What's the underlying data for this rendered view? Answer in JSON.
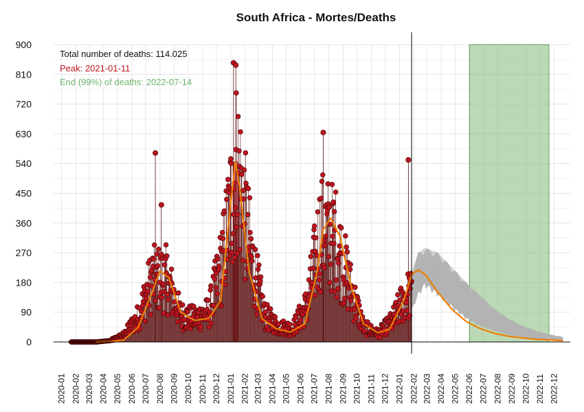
{
  "chart_data": {
    "type": "line",
    "title": "South Africa - Mortes/Deaths",
    "xlabel": "",
    "ylabel": "",
    "ylim": [
      0,
      900
    ],
    "yticks": [
      "0",
      "90",
      "180",
      "270",
      "360",
      "450",
      "540",
      "630",
      "720",
      "810",
      "900"
    ],
    "xticks": [
      "2020-01",
      "2020-02",
      "2020-03",
      "2020-04",
      "2020-05",
      "2020-06",
      "2020-07",
      "2020-08",
      "2020-09",
      "2020-10",
      "2020-11",
      "2020-12",
      "2021-01",
      "2021-02",
      "2021-03",
      "2021-04",
      "2021-05",
      "2021-06",
      "2021-07",
      "2021-08",
      "2021-09",
      "2021-10",
      "2021-11",
      "2021-12",
      "2022-01",
      "2022-02",
      "2022-03",
      "2022-04",
      "2022-05",
      "2022-06",
      "2022-07",
      "2022-08",
      "2022-09",
      "2022-10",
      "2022-11",
      "2022-12"
    ],
    "grid": true,
    "annotations": {
      "total": "Total number of deaths: 114.025",
      "peak": "Peak: 2021-01-11",
      "end": "End (99%) of deaths: 2022-07-14"
    },
    "peak_date": "2021-01-11",
    "current_date": "2022-01-27",
    "end_band": {
      "from": "2022-06-01",
      "to": "2022-11-20"
    },
    "observed_monthly_approx": {
      "x": [
        "2020-03",
        "2020-04",
        "2020-05",
        "2020-06",
        "2020-07",
        "2020-08",
        "2020-09",
        "2020-10",
        "2020-11",
        "2020-12",
        "2021-01",
        "2021-02",
        "2021-03",
        "2021-04",
        "2021-05",
        "2021-06",
        "2021-07",
        "2021-08",
        "2021-09",
        "2021-10",
        "2021-11",
        "2021-12",
        "2022-01"
      ],
      "y": [
        0,
        4,
        20,
        75,
        190,
        190,
        80,
        70,
        90,
        250,
        540,
        250,
        80,
        45,
        40,
        110,
        340,
        310,
        170,
        45,
        25,
        60,
        140
      ]
    },
    "highlight_spikes": [
      {
        "date": "2020-07-22",
        "value": 572
      },
      {
        "date": "2020-08-04",
        "value": 415
      },
      {
        "date": "2021-01-07",
        "value": 845
      },
      {
        "date": "2021-01-12",
        "value": 838
      },
      {
        "date": "2021-07-20",
        "value": 634
      },
      {
        "date": "2022-01-20",
        "value": 551
      }
    ],
    "smoothed_fit": {
      "x": [
        "2020-03-15",
        "2020-04-15",
        "2020-05-15",
        "2020-06-15",
        "2020-07-15",
        "2020-08-01",
        "2020-08-20",
        "2020-09-15",
        "2020-10-15",
        "2020-11-15",
        "2020-12-10",
        "2021-01-01",
        "2021-01-11",
        "2021-01-20",
        "2021-02-10",
        "2021-03-10",
        "2021-04-10",
        "2021-05-10",
        "2021-06-10",
        "2021-07-05",
        "2021-07-20",
        "2021-08-05",
        "2021-08-25",
        "2021-09-20",
        "2021-10-15",
        "2021-11-15",
        "2021-12-10",
        "2022-01-10",
        "2022-01-27",
        "2022-02-10",
        "2022-02-25",
        "2022-03-25",
        "2022-04-25",
        "2022-05-25",
        "2022-06-25",
        "2022-07-25",
        "2022-08-25",
        "2022-09-25",
        "2022-10-25",
        "2022-11-25",
        "2022-12-20"
      ],
      "y": [
        0,
        1,
        6,
        45,
        150,
        215,
        195,
        90,
        65,
        72,
        125,
        420,
        545,
        470,
        210,
        70,
        40,
        30,
        55,
        200,
        340,
        375,
        320,
        160,
        55,
        28,
        38,
        125,
        205,
        218,
        205,
        150,
        98,
        62,
        40,
        26,
        17,
        12,
        8,
        6,
        4
      ]
    },
    "forecast_band": {
      "x": [
        "2022-01-27",
        "2022-02-10",
        "2022-02-25",
        "2022-03-25",
        "2022-04-25",
        "2022-05-25",
        "2022-06-25",
        "2022-07-25",
        "2022-08-25",
        "2022-09-25",
        "2022-10-25",
        "2022-11-25",
        "2022-12-20"
      ],
      "lower": [
        100,
        150,
        180,
        150,
        110,
        75,
        50,
        35,
        22,
        15,
        10,
        7,
        5
      ],
      "upper": [
        210,
        270,
        285,
        270,
        225,
        180,
        140,
        100,
        70,
        48,
        33,
        22,
        15
      ]
    },
    "colors": {
      "points": "#c0151f",
      "point_stroke": "#4a0a0a",
      "fit": "#ef7d00",
      "band": "#b3b3b3",
      "end_band": "#8fbf86",
      "peak_bar": "#d24a5a",
      "total_text": "#111111",
      "peak_text": "#c0151f",
      "end_text": "#6db36d"
    }
  }
}
